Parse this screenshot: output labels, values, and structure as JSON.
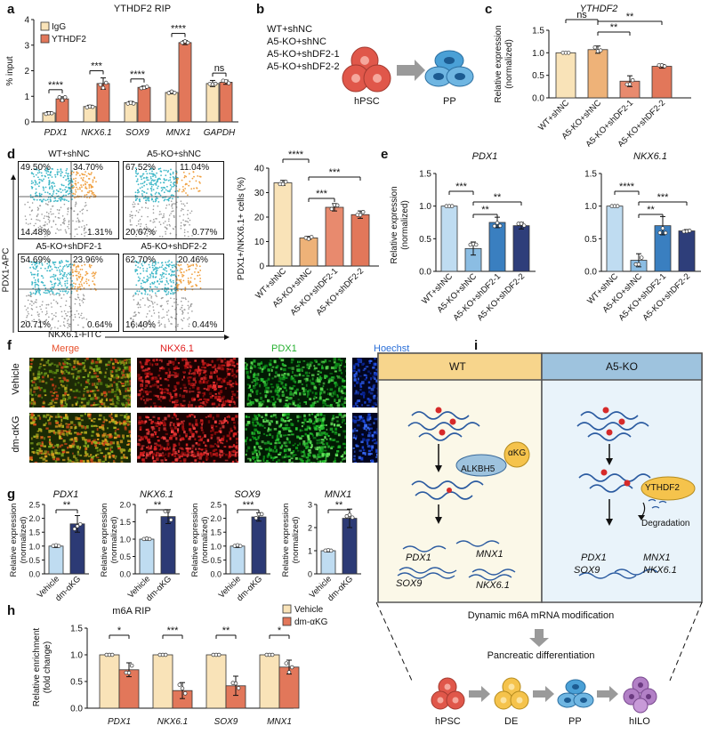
{
  "panel_labels": [
    "a",
    "b",
    "c",
    "d",
    "e",
    "f",
    "g",
    "h",
    "i"
  ],
  "colors": {
    "igg": "#f9e3b8",
    "ythdf2": "#e2775a",
    "wt": "#f9e3b8",
    "a5ko": "#eeb278",
    "sh1": "#e88a6e",
    "sh2": "#e2775a",
    "e_wt": "#bfdcf1",
    "e_ko": "#8bbde3",
    "e_sh1": "#3a7fc0",
    "e_sh2": "#2e3e7a",
    "vehicle": "#bfdcf1",
    "dmakg": "#2c3a75",
    "wt_box_header": "#f7d58c",
    "wt_box_bg": "#fbf8e8",
    "ko_box_header": "#9ec3de",
    "ko_box_bg": "#e9f3fa",
    "hpsc": "#e0574a",
    "de": "#f5c34c",
    "pp": "#4aa0d6",
    "hilo": "#b280c6"
  },
  "panel_a": {
    "title": "YTHDF2 RIP",
    "ylabel": "% input",
    "legend": [
      "IgG",
      "YTHDF2"
    ],
    "sig": [
      "****",
      "***",
      "****",
      "****",
      "ns"
    ]
  },
  "panel_b": {
    "conditions": [
      "WT+shNC",
      "A5-KO+shNC",
      "A5-KO+shDF2-1",
      "A5-KO+shDF2-2"
    ],
    "from": "hPSC",
    "to": "PP"
  },
  "panel_c": {
    "title": "YTHDF2",
    "ylabel": "Relative expression",
    "ylabel2": "(normalized)",
    "sig": [
      "ns",
      "**",
      "**"
    ]
  },
  "panel_d": {
    "quads": [
      {
        "title": "WT+shNC",
        "ul": "49.50%",
        "ur": "34.70%",
        "ll": "14.48%",
        "lr": "1.31%"
      },
      {
        "title": "A5-KO+shNC",
        "ul": "67.52%",
        "ur": "11.04%",
        "ll": "20.67%",
        "lr": "0.77%"
      },
      {
        "title": "A5-KO+shDF2-1",
        "ul": "54.69%",
        "ur": "23.96%",
        "ll": "20.71%",
        "lr": "0.64%"
      },
      {
        "title": "A5-KO+shDF2-2",
        "ul": "62.70%",
        "ur": "20.46%",
        "ll": "16.40%",
        "lr": "0.44%"
      }
    ],
    "yaxis": "PDX1-APC",
    "xaxis": "NKX6.1-FITC",
    "bar_ylabel": "PDX1+/NKX6.1+ cells (%)",
    "sig": [
      "****",
      "***",
      "***"
    ]
  },
  "panel_e": {
    "ylabel": "Relative expression",
    "ylabel2": "(normalized)",
    "left_title": "PDX1",
    "right_title": "NKX6.1",
    "left_sig": [
      "***",
      "**",
      "**"
    ],
    "right_sig": [
      "****",
      "**",
      "***"
    ]
  },
  "panel_f": {
    "columns": [
      "Merge",
      "NKX6.1",
      "PDX1",
      "Hoechst"
    ],
    "column_colors": [
      "#e8502c",
      "#e02020",
      "#26b030",
      "#2a6fd8"
    ],
    "rows": [
      "Vehicle",
      "dm-αKG"
    ]
  },
  "panel_g": {
    "genes": [
      "PDX1",
      "NKX6.1",
      "SOX9",
      "MNX1"
    ],
    "ylabel": "Relative expression",
    "ylabel2": "(normalized)",
    "sig": [
      "**",
      "**",
      "***",
      "**"
    ],
    "groups": [
      "Vehicle",
      "dm-αKG"
    ]
  },
  "panel_h": {
    "title": "m6A RIP",
    "legend": [
      "Vehicle",
      "dm-αKG"
    ],
    "ylabel": "Relative enrichment",
    "ylabel2": "(fold change)",
    "sig": [
      "*",
      "***",
      "**",
      "*"
    ]
  },
  "panel_i": {
    "wt_header": "WT",
    "ko_header": "A5-KO",
    "enzyme": "ALKBH5",
    "cofactor": "αKG",
    "reader": "YTHDF2",
    "degradation": "Degradation",
    "wt_genes": [
      "PDX1",
      "MNX1",
      "SOX9",
      "NKX6.1"
    ],
    "ko_genes": [
      "PDX1",
      "MNX1",
      "SOX9",
      "NKX6.1"
    ],
    "caption1": "Dynamic m6A mRNA modification",
    "caption2": "Pancreatic differentiation",
    "stages": [
      "hPSC",
      "DE",
      "PP",
      "hILO"
    ]
  },
  "chart_data": [
    {
      "id": "a",
      "type": "bar",
      "title": "YTHDF2 RIP",
      "ylabel": "% input",
      "categories": [
        "PDX1",
        "NKX6.1",
        "SOX9",
        "MNX1",
        "GAPDH"
      ],
      "ylim": [
        0,
        4
      ],
      "yticks": [
        0,
        1,
        2,
        3,
        4
      ],
      "series": [
        {
          "name": "IgG",
          "values": [
            0.35,
            0.6,
            0.75,
            1.15,
            1.5
          ],
          "errors": [
            0.05,
            0.05,
            0.05,
            0.05,
            0.12
          ]
        },
        {
          "name": "YTHDF2",
          "values": [
            0.9,
            1.5,
            1.35,
            3.1,
            1.55
          ],
          "errors": [
            0.08,
            0.22,
            0.05,
            0.08,
            0.08
          ]
        }
      ]
    },
    {
      "id": "c",
      "type": "bar",
      "title": "YTHDF2",
      "ylabel": "Relative expression (normalized)",
      "categories": [
        "WT+shNC",
        "A5-KO+shNC",
        "A5-KO+shDF2-1",
        "A5-KO+shDF2-2"
      ],
      "ylim": [
        0,
        1.5
      ],
      "yticks": [
        0,
        0.5,
        1.0,
        1.5
      ],
      "values": [
        1.0,
        1.07,
        0.37,
        0.7
      ],
      "errors": [
        0.0,
        0.08,
        0.12,
        0.04
      ]
    },
    {
      "id": "d",
      "type": "bar",
      "ylabel": "PDX1+/NKX6.1+ cells (%)",
      "categories": [
        "WT+shNC",
        "A5-KO+shNC",
        "A5-KO+shDF2-1",
        "A5-KO+shDF2-2"
      ],
      "ylim": [
        0,
        40
      ],
      "yticks": [
        0,
        10,
        20,
        30,
        40
      ],
      "values": [
        34,
        11.5,
        24,
        21
      ],
      "errors": [
        1.0,
        0.6,
        1.5,
        1.5
      ]
    },
    {
      "id": "e-left",
      "type": "bar",
      "title": "PDX1",
      "ylabel": "Relative expression (normalized)",
      "categories": [
        "WT+shNC",
        "A5-KO+shNC",
        "A5-KO+shDF2-1",
        "A5-KO+shDF2-2"
      ],
      "ylim": [
        0,
        1.5
      ],
      "yticks": [
        0,
        0.5,
        1.0,
        1.5
      ],
      "values": [
        1.0,
        0.35,
        0.75,
        0.7
      ],
      "errors": [
        0.0,
        0.1,
        0.08,
        0.05
      ]
    },
    {
      "id": "e-right",
      "type": "bar",
      "title": "NKX6.1",
      "categories": [
        "WT+shNC",
        "A5-KO+shNC",
        "A5-KO+shDF2-1",
        "A5-KO+shDF2-2"
      ],
      "ylim": [
        0,
        1.5
      ],
      "yticks": [
        0,
        0.5,
        1.0,
        1.5
      ],
      "values": [
        1.0,
        0.17,
        0.7,
        0.62
      ],
      "errors": [
        0.0,
        0.1,
        0.14,
        0.02
      ]
    },
    {
      "id": "g-PDX1",
      "type": "bar",
      "title": "PDX1",
      "categories": [
        "Vehicle",
        "dm-αKG"
      ],
      "ylim": [
        0,
        2.5
      ],
      "yticks": [
        0,
        0.5,
        1.0,
        1.5,
        2.0,
        2.5
      ],
      "values": [
        1.0,
        1.8
      ],
      "errors": [
        0.05,
        0.3
      ]
    },
    {
      "id": "g-NKX6.1",
      "type": "bar",
      "title": "NKX6.1",
      "categories": [
        "Vehicle",
        "dm-αKG"
      ],
      "ylim": [
        0,
        2.0
      ],
      "yticks": [
        0,
        0.5,
        1.0,
        1.5,
        2.0
      ],
      "values": [
        1.0,
        1.65
      ],
      "errors": [
        0.03,
        0.2
      ]
    },
    {
      "id": "g-SOX9",
      "type": "bar",
      "title": "SOX9",
      "categories": [
        "Vehicle",
        "dm-αKG"
      ],
      "ylim": [
        0,
        2.5
      ],
      "yticks": [
        0,
        0.5,
        1.0,
        1.5,
        2.0,
        2.5
      ],
      "values": [
        1.0,
        2.05
      ],
      "errors": [
        0.05,
        0.15
      ]
    },
    {
      "id": "g-MNX1",
      "type": "bar",
      "title": "MNX1",
      "categories": [
        "Vehicle",
        "dm-αKG"
      ],
      "ylim": [
        0,
        3
      ],
      "yticks": [
        0,
        1,
        2,
        3
      ],
      "values": [
        1.0,
        2.4
      ],
      "errors": [
        0.05,
        0.4
      ]
    },
    {
      "id": "h",
      "type": "bar",
      "title": "m6A RIP",
      "ylabel": "Relative enrichment (fold change)",
      "categories": [
        "PDX1",
        "NKX6.1",
        "SOX9",
        "MNX1"
      ],
      "ylim": [
        0,
        1.5
      ],
      "yticks": [
        0,
        0.5,
        1.0,
        1.5
      ],
      "series": [
        {
          "name": "Vehicle",
          "values": [
            1.0,
            1.0,
            1.0,
            1.0
          ],
          "errors": [
            0.0,
            0.0,
            0.0,
            0.0
          ]
        },
        {
          "name": "dm-αKG",
          "values": [
            0.72,
            0.33,
            0.42,
            0.77
          ],
          "errors": [
            0.13,
            0.15,
            0.18,
            0.13
          ]
        }
      ]
    }
  ]
}
